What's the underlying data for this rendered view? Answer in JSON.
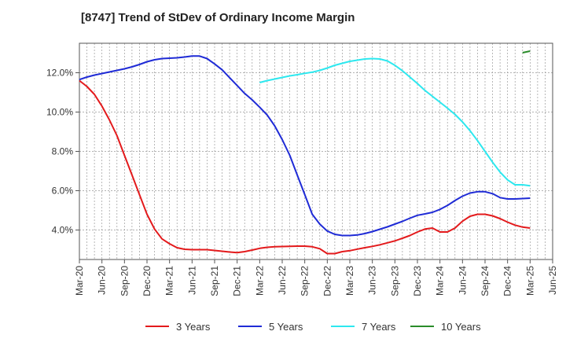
{
  "chart_data": {
    "type": "line",
    "title": "[8747]  Trend of StDev of Ordinary Income Margin",
    "xlabel": "",
    "ylabel": "",
    "x_tick_labels": [
      "Mar-20",
      "Jun-20",
      "Sep-20",
      "Dec-20",
      "Mar-21",
      "Jun-21",
      "Sep-21",
      "Dec-21",
      "Mar-22",
      "Jun-22",
      "Sep-22",
      "Dec-22",
      "Mar-23",
      "Jun-23",
      "Sep-23",
      "Dec-23",
      "Mar-24",
      "Jun-24",
      "Sep-24",
      "Dec-24",
      "Mar-25",
      "Jun-25"
    ],
    "y_tick_labels": [
      "4.0%",
      "6.0%",
      "8.0%",
      "10.0%",
      "12.0%"
    ],
    "y_ticks": [
      4,
      6,
      8,
      10,
      12
    ],
    "ylim": [
      2.5,
      13.5
    ],
    "y_unit": "%",
    "grid": "dashed vertical, one per month",
    "legend_position": "bottom",
    "colors": {
      "3 Years": "#e31a1c",
      "5 Years": "#1f2bd6",
      "7 Years": "#2de8ef",
      "10 Years": "#2a8c2a"
    },
    "series": [
      {
        "name": "3 Years",
        "x": [
          "Mar-20",
          "Apr-20",
          "May-20",
          "Jun-20",
          "Jul-20",
          "Aug-20",
          "Sep-20",
          "Oct-20",
          "Nov-20",
          "Dec-20",
          "Jan-21",
          "Feb-21",
          "Mar-21",
          "Apr-21",
          "May-21",
          "Jun-21",
          "Jul-21",
          "Aug-21",
          "Sep-21",
          "Oct-21",
          "Nov-21",
          "Dec-21",
          "Jan-22",
          "Feb-22",
          "Mar-22",
          "Apr-22",
          "May-22",
          "Jun-22",
          "Jul-22",
          "Aug-22",
          "Sep-22",
          "Oct-22",
          "Nov-22",
          "Dec-22",
          "Jan-23",
          "Feb-23",
          "Mar-23",
          "Apr-23",
          "May-23",
          "Jun-23",
          "Jul-23",
          "Aug-23",
          "Sep-23",
          "Oct-23",
          "Nov-23",
          "Dec-23",
          "Jan-24",
          "Feb-24",
          "Mar-24",
          "Apr-24",
          "May-24",
          "Jun-24",
          "Jul-24",
          "Aug-24",
          "Sep-24",
          "Oct-24",
          "Nov-24",
          "Dec-24",
          "Jan-25",
          "Feb-25",
          "Mar-25"
        ],
        "values": [
          11.6,
          11.3,
          10.9,
          10.3,
          9.6,
          8.8,
          7.8,
          6.8,
          5.8,
          4.8,
          4.05,
          3.55,
          3.3,
          3.1,
          3.02,
          3.0,
          3.0,
          3.0,
          2.96,
          2.92,
          2.88,
          2.85,
          2.9,
          2.98,
          3.07,
          3.12,
          3.15,
          3.16,
          3.17,
          3.18,
          3.18,
          3.15,
          3.05,
          2.8,
          2.8,
          2.9,
          2.95,
          3.03,
          3.1,
          3.17,
          3.25,
          3.35,
          3.45,
          3.58,
          3.72,
          3.9,
          4.05,
          4.1,
          3.9,
          3.9,
          4.1,
          4.45,
          4.7,
          4.8,
          4.8,
          4.72,
          4.58,
          4.4,
          4.25,
          4.15,
          4.1
        ]
      },
      {
        "name": "5 Years",
        "x": [
          "Mar-20",
          "Apr-20",
          "May-20",
          "Jun-20",
          "Jul-20",
          "Aug-20",
          "Sep-20",
          "Oct-20",
          "Nov-20",
          "Dec-20",
          "Jan-21",
          "Feb-21",
          "Mar-21",
          "Apr-21",
          "May-21",
          "Jun-21",
          "Jul-21",
          "Aug-21",
          "Sep-21",
          "Oct-21",
          "Nov-21",
          "Dec-21",
          "Jan-22",
          "Feb-22",
          "Mar-22",
          "Apr-22",
          "May-22",
          "Jun-22",
          "Jul-22",
          "Aug-22",
          "Sep-22",
          "Oct-22",
          "Nov-22",
          "Dec-22",
          "Jan-23",
          "Feb-23",
          "Mar-23",
          "Apr-23",
          "May-23",
          "Jun-23",
          "Jul-23",
          "Aug-23",
          "Sep-23",
          "Oct-23",
          "Nov-23",
          "Dec-23",
          "Jan-24",
          "Feb-24",
          "Mar-24",
          "Apr-24",
          "May-24",
          "Jun-24",
          "Jul-24",
          "Aug-24",
          "Sep-24",
          "Oct-24",
          "Nov-24",
          "Dec-24",
          "Jan-25",
          "Feb-25",
          "Mar-25"
        ],
        "values": [
          11.65,
          11.78,
          11.88,
          11.96,
          12.04,
          12.12,
          12.2,
          12.3,
          12.42,
          12.56,
          12.66,
          12.72,
          12.74,
          12.76,
          12.8,
          12.85,
          12.85,
          12.72,
          12.45,
          12.15,
          11.75,
          11.35,
          10.95,
          10.62,
          10.25,
          9.85,
          9.3,
          8.6,
          7.8,
          6.8,
          5.8,
          4.8,
          4.3,
          3.95,
          3.78,
          3.72,
          3.72,
          3.75,
          3.82,
          3.92,
          4.04,
          4.16,
          4.3,
          4.44,
          4.6,
          4.75,
          4.82,
          4.9,
          5.05,
          5.25,
          5.5,
          5.72,
          5.88,
          5.95,
          5.95,
          5.85,
          5.65,
          5.58,
          5.58,
          5.6,
          5.62
        ]
      },
      {
        "name": "7 Years",
        "x": [
          "Mar-22",
          "Apr-22",
          "May-22",
          "Jun-22",
          "Jul-22",
          "Aug-22",
          "Sep-22",
          "Oct-22",
          "Nov-22",
          "Dec-22",
          "Jan-23",
          "Feb-23",
          "Mar-23",
          "Apr-23",
          "May-23",
          "Jun-23",
          "Jul-23",
          "Aug-23",
          "Sep-23",
          "Oct-23",
          "Nov-23",
          "Dec-23",
          "Jan-24",
          "Feb-24",
          "Mar-24",
          "Apr-24",
          "May-24",
          "Jun-24",
          "Jul-24",
          "Aug-24",
          "Sep-24",
          "Oct-24",
          "Nov-24",
          "Dec-24",
          "Jan-25",
          "Feb-25",
          "Mar-25"
        ],
        "values": [
          11.5,
          11.6,
          11.68,
          11.76,
          11.84,
          11.9,
          11.97,
          12.03,
          12.12,
          12.24,
          12.38,
          12.48,
          12.58,
          12.64,
          12.7,
          12.72,
          12.7,
          12.6,
          12.38,
          12.1,
          11.78,
          11.45,
          11.1,
          10.8,
          10.5,
          10.2,
          9.88,
          9.5,
          9.05,
          8.55,
          8.0,
          7.45,
          6.95,
          6.55,
          6.3,
          6.3,
          6.25
        ]
      },
      {
        "name": "10 Years",
        "x": [
          "Feb-25",
          "Mar-25"
        ],
        "values": [
          13.02,
          13.1
        ]
      }
    ]
  }
}
